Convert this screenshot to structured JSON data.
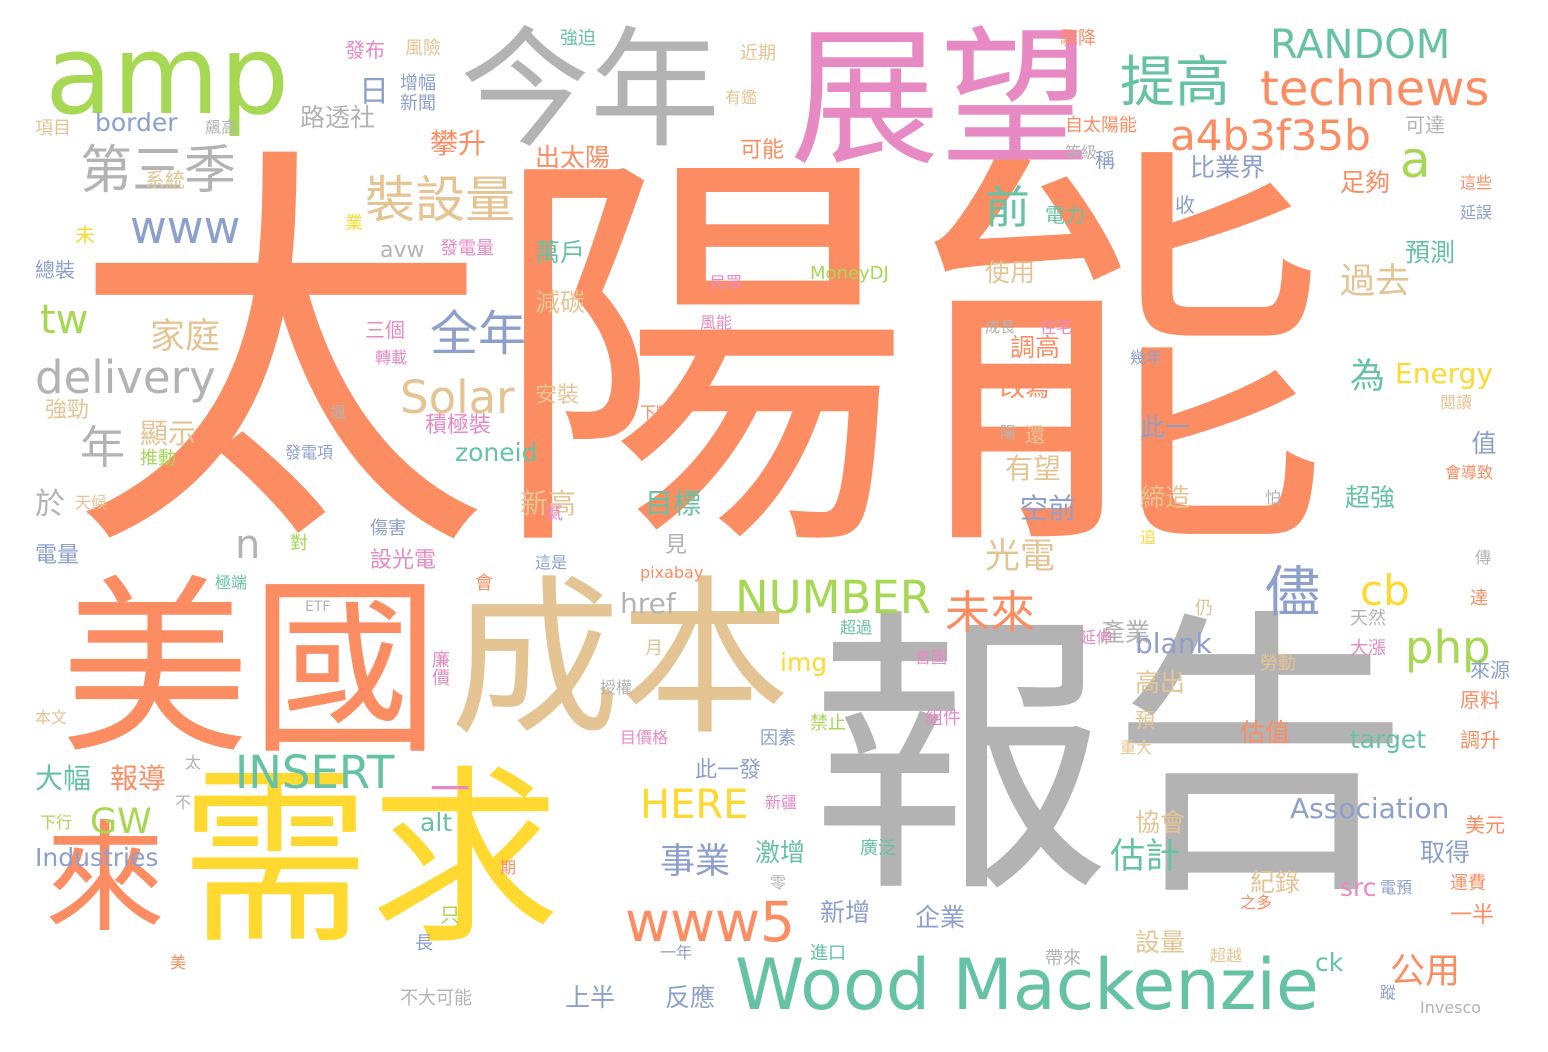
{
  "palette": {
    "orange": "#FC8D62",
    "gray": "#B3B3B3",
    "yellow": "#FFD92F",
    "green": "#66C2A5",
    "pink": "#E78AC3",
    "tan": "#E5C494",
    "blue": "#8DA0CB",
    "lime": "#A6D854"
  },
  "words": [
    {
      "text": "太陽能",
      "color": "orange"
    },
    {
      "text": "報告",
      "color": "gray"
    },
    {
      "text": "美國",
      "color": "orange"
    },
    {
      "text": "需求",
      "color": "yellow"
    },
    {
      "text": "成本",
      "color": "tan"
    },
    {
      "text": "展望",
      "color": "pink"
    },
    {
      "text": "今年",
      "color": "gray"
    },
    {
      "text": "amp",
      "color": "lime"
    },
    {
      "text": "一",
      "color": "pink"
    },
    {
      "text": "來",
      "color": "orange"
    },
    {
      "text": "Wood Mackenzie",
      "color": "green"
    },
    {
      "text": "提高",
      "color": "green"
    },
    {
      "text": "technews",
      "color": "orange"
    },
    {
      "text": "RANDOM",
      "color": "green"
    },
    {
      "text": "a4b3f35b",
      "color": "orange"
    },
    {
      "text": "第三季",
      "color": "gray"
    },
    {
      "text": "裝設量",
      "color": "tan"
    },
    {
      "text": "www",
      "color": "blue"
    },
    {
      "text": "delivery",
      "color": "gray"
    },
    {
      "text": "全年",
      "color": "blue"
    },
    {
      "text": "www5",
      "color": "orange"
    },
    {
      "text": "INSERT",
      "color": "green"
    },
    {
      "text": "未來",
      "color": "orange"
    },
    {
      "text": "儘",
      "color": "blue"
    },
    {
      "text": "php",
      "color": "lime"
    },
    {
      "text": "NUMBER",
      "color": "lime"
    },
    {
      "text": "cb",
      "color": "yellow"
    },
    {
      "text": "a",
      "color": "lime"
    },
    {
      "text": "前",
      "color": "green"
    },
    {
      "text": "年",
      "color": "gray"
    },
    {
      "text": "tw",
      "color": "lime"
    },
    {
      "text": "n",
      "color": "gray"
    },
    {
      "text": "Solar",
      "color": "tan"
    },
    {
      "text": "HERE",
      "color": "yellow"
    },
    {
      "text": "GW",
      "color": "lime"
    },
    {
      "text": "光電",
      "color": "tan"
    },
    {
      "text": "過去",
      "color": "tan"
    },
    {
      "text": "家庭",
      "color": "tan"
    },
    {
      "text": "路透社",
      "color": "gray"
    },
    {
      "text": "border",
      "color": "blue"
    },
    {
      "text": "日",
      "color": "blue"
    },
    {
      "text": "估計",
      "color": "green"
    },
    {
      "text": "事業",
      "color": "blue"
    },
    {
      "text": "公用",
      "color": "orange"
    },
    {
      "text": "為",
      "color": "green"
    },
    {
      "text": "Energy",
      "color": "yellow"
    },
    {
      "text": "Association",
      "color": "blue"
    },
    {
      "text": "Industries",
      "color": "blue"
    },
    {
      "text": "zoneid",
      "color": "green"
    },
    {
      "text": "href",
      "color": "gray"
    },
    {
      "text": "blank",
      "color": "blue"
    },
    {
      "text": "img",
      "color": "yellow"
    },
    {
      "text": "target",
      "color": "green"
    },
    {
      "text": "alt",
      "color": "green"
    },
    {
      "text": "src",
      "color": "pink"
    },
    {
      "text": "ck",
      "color": "green"
    },
    {
      "text": "avw",
      "color": "gray"
    },
    {
      "text": "MoneyDJ",
      "color": "lime"
    },
    {
      "text": "pixabay",
      "color": "orange"
    },
    {
      "text": "Invesco",
      "color": "gray"
    },
    {
      "text": "ETF",
      "color": "gray"
    },
    {
      "text": "大幅",
      "color": "green"
    },
    {
      "text": "報導",
      "color": "orange"
    },
    {
      "text": "顯示",
      "color": "tan"
    },
    {
      "text": "於",
      "color": "gray"
    },
    {
      "text": "攀升",
      "color": "orange"
    },
    {
      "text": "出太陽",
      "color": "orange"
    },
    {
      "text": "比業界",
      "color": "blue"
    },
    {
      "text": "足夠",
      "color": "orange"
    },
    {
      "text": "預測",
      "color": "green"
    },
    {
      "text": "萬戶",
      "color": "green"
    },
    {
      "text": "減碳",
      "color": "tan"
    },
    {
      "text": "使用",
      "color": "tan"
    },
    {
      "text": "調高",
      "color": "orange"
    },
    {
      "text": "改寫",
      "color": "orange"
    },
    {
      "text": "有望",
      "color": "tan"
    },
    {
      "text": "空前",
      "color": "blue"
    },
    {
      "text": "新高",
      "color": "tan"
    },
    {
      "text": "目標",
      "color": "green"
    },
    {
      "text": "產業",
      "color": "gray"
    },
    {
      "text": "高出",
      "color": "tan"
    },
    {
      "text": "協會",
      "color": "tan"
    },
    {
      "text": "激增",
      "color": "green"
    },
    {
      "text": "新增",
      "color": "blue"
    },
    {
      "text": "企業",
      "color": "blue"
    },
    {
      "text": "反應",
      "color": "blue"
    },
    {
      "text": "上半",
      "color": "blue"
    },
    {
      "text": "超強",
      "color": "green"
    },
    {
      "text": "締造",
      "color": "tan"
    },
    {
      "text": "此一",
      "color": "blue"
    },
    {
      "text": "值",
      "color": "blue"
    },
    {
      "text": "估值",
      "color": "orange"
    },
    {
      "text": "取得",
      "color": "blue"
    },
    {
      "text": "紀錄",
      "color": "tan"
    },
    {
      "text": "設量",
      "color": "tan"
    },
    {
      "text": "三個",
      "color": "pink"
    },
    {
      "text": "積極裝",
      "color": "pink"
    },
    {
      "text": "安裝",
      "color": "tan"
    },
    {
      "text": "設光電",
      "color": "pink"
    },
    {
      "text": "推動",
      "color": "lime"
    },
    {
      "text": "電量",
      "color": "blue"
    },
    {
      "text": "發布",
      "color": "pink"
    },
    {
      "text": "風險",
      "color": "tan"
    },
    {
      "text": "強迫",
      "color": "green"
    },
    {
      "text": "近期",
      "color": "tan"
    },
    {
      "text": "驟降",
      "color": "orange"
    },
    {
      "text": "自太陽能",
      "color": "orange"
    },
    {
      "text": "可達",
      "color": "gray"
    },
    {
      "text": "可能",
      "color": "orange"
    },
    {
      "text": "系統",
      "color": "tan"
    },
    {
      "text": "總裝",
      "color": "blue"
    },
    {
      "text": "項目",
      "color": "tan"
    },
    {
      "text": "強勁",
      "color": "tan"
    },
    {
      "text": "發電量",
      "color": "pink"
    },
    {
      "text": "電力",
      "color": "green"
    },
    {
      "text": "成長",
      "color": "gray"
    },
    {
      "text": "風能",
      "color": "pink"
    },
    {
      "text": "轉載",
      "color": "pink"
    },
    {
      "text": "發電項",
      "color": "blue"
    },
    {
      "text": "傷害",
      "color": "blue"
    },
    {
      "text": "廉價",
      "color": "pink"
    },
    {
      "text": "此一發",
      "color": "blue"
    },
    {
      "text": "目價格",
      "color": "pink"
    },
    {
      "text": "因素",
      "color": "blue"
    },
    {
      "text": "組件",
      "color": "pink"
    },
    {
      "text": "警告",
      "color": "gray"
    },
    {
      "text": "重大",
      "color": "tan"
    },
    {
      "text": "來源",
      "color": "blue"
    },
    {
      "text": "原料",
      "color": "orange"
    },
    {
      "text": "調升",
      "color": "orange"
    },
    {
      "text": "美元",
      "color": "orange"
    },
    {
      "text": "運費",
      "color": "orange"
    },
    {
      "text": "一半",
      "color": "orange"
    },
    {
      "text": "首圖",
      "color": "pink"
    },
    {
      "text": "勞動",
      "color": "tan"
    },
    {
      "text": "超過",
      "color": "green"
    },
    {
      "text": "延伸",
      "color": "pink"
    },
    {
      "text": "新疆",
      "color": "pink"
    },
    {
      "text": "禁止",
      "color": "lime"
    },
    {
      "text": "廣泛",
      "color": "green"
    },
    {
      "text": "進口",
      "color": "green"
    },
    {
      "text": "帶來",
      "color": "gray"
    },
    {
      "text": "超越",
      "color": "tan"
    },
    {
      "text": "下行",
      "color": "lime"
    },
    {
      "text": "本文",
      "color": "tan"
    },
    {
      "text": "授權",
      "color": "gray"
    },
    {
      "text": "極端",
      "color": "green"
    },
    {
      "text": "這是",
      "color": "blue"
    },
    {
      "text": "不大可能",
      "color": "gray"
    },
    {
      "text": "一年",
      "color": "blue"
    },
    {
      "text": "天然",
      "color": "gray"
    },
    {
      "text": "大漲",
      "color": "pink"
    },
    {
      "text": "這些",
      "color": "orange"
    },
    {
      "text": "延誤",
      "color": "blue"
    },
    {
      "text": "閱讀",
      "color": "tan"
    },
    {
      "text": "會導致",
      "color": "orange"
    },
    {
      "text": "增幅",
      "color": "blue"
    },
    {
      "text": "新聞",
      "color": "blue"
    },
    {
      "text": "飆高",
      "color": "gray"
    },
    {
      "text": "有鑑",
      "color": "tan"
    },
    {
      "text": "等級",
      "color": "gray"
    },
    {
      "text": "稱",
      "color": "blue"
    },
    {
      "text": "收",
      "color": "blue"
    },
    {
      "text": "未",
      "color": "yellow"
    },
    {
      "text": "業",
      "color": "yellow"
    },
    {
      "text": "民眾",
      "color": "pink"
    },
    {
      "text": "住宅",
      "color": "pink"
    },
    {
      "text": "幾年",
      "color": "blue"
    },
    {
      "text": "下斷",
      "color": "orange"
    },
    {
      "text": "還",
      "color": "tan"
    },
    {
      "text": "陽",
      "color": "gray"
    },
    {
      "text": "氣",
      "color": "pink"
    },
    {
      "text": "追",
      "color": "yellow"
    },
    {
      "text": "怕",
      "color": "gray"
    },
    {
      "text": "傳",
      "color": "gray"
    },
    {
      "text": "達",
      "color": "orange"
    },
    {
      "text": "見",
      "color": "gray"
    },
    {
      "text": "仍",
      "color": "tan"
    },
    {
      "text": "月",
      "color": "tan"
    },
    {
      "text": "預",
      "color": "tan"
    },
    {
      "text": "會",
      "color": "orange"
    },
    {
      "text": "對",
      "color": "lime"
    },
    {
      "text": "只",
      "color": "lime"
    },
    {
      "text": "長",
      "color": "blue"
    },
    {
      "text": "美",
      "color": "orange"
    },
    {
      "text": "期",
      "color": "orange"
    },
    {
      "text": "零",
      "color": "gray"
    },
    {
      "text": "之多",
      "color": "orange"
    },
    {
      "text": "電預",
      "color": "blue"
    },
    {
      "text": "天候",
      "color": "tan"
    },
    {
      "text": "颯",
      "color": "gray"
    },
    {
      "text": "太",
      "color": "gray"
    },
    {
      "text": "不",
      "color": "gray"
    },
    {
      "text": "蹤",
      "color": "blue"
    }
  ]
}
